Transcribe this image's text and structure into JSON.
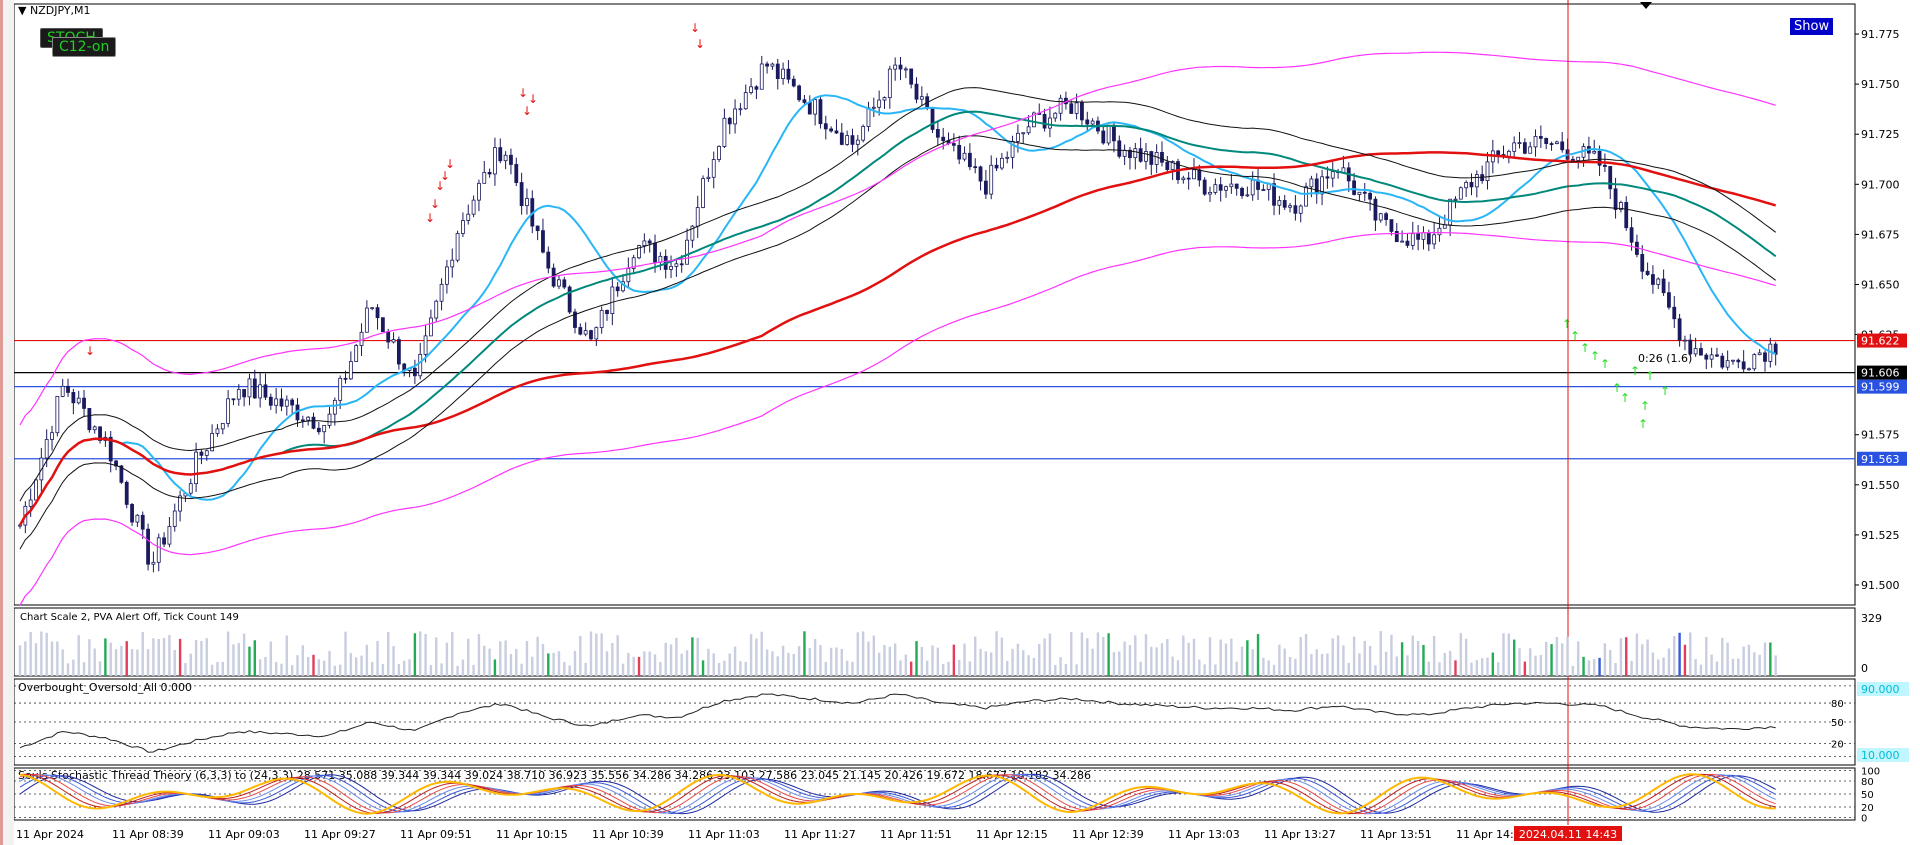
{
  "header": {
    "symbol_title": "NZDJPY,M1",
    "tag_stoch": "STOCH",
    "tag_c12": "C12-on",
    "show_button": "Show"
  },
  "price_axis": {
    "ticks": [
      "91.775",
      "91.750",
      "91.725",
      "91.700",
      "91.675",
      "91.650",
      "91.625",
      "91.575",
      "91.550",
      "91.525",
      "91.500"
    ],
    "labels": [
      {
        "text": "91.622",
        "value": 91.622,
        "bg": "#e01010",
        "fg": "#ffffff"
      },
      {
        "text": "91.606",
        "value": 91.606,
        "bg": "#000000",
        "fg": "#ffffff"
      },
      {
        "text": "91.599",
        "value": 91.599,
        "bg": "#2a52e0",
        "fg": "#ffffff"
      },
      {
        "text": "91.563",
        "value": 91.563,
        "bg": "#2a52e0",
        "fg": "#ffffff"
      }
    ],
    "timer_label": "0:26 (1.6)"
  },
  "volume_panel": {
    "title": "Chart Scale  2,   PVA Alert Off,   Tick Count  149",
    "max_label": "329",
    "min_label": "0"
  },
  "oscillator_panel": {
    "title": "Overbought_Oversold_All 0.000",
    "upper_label": "90.000",
    "lower_label": "10.000",
    "level_labels": [
      "80",
      "50",
      "20"
    ]
  },
  "stoch_panel": {
    "title": "Souls Stochastic Thread Theory (6,3,3) to (24,3,3) 28.571 35.088 39.344 39.344 39.024 38.710 36.923 35.556 34.286 34.286 33.103 27.586 23.045 21.145 20.426 19.672 18.677 18.182 34.286",
    "level_labels": [
      "100",
      "80",
      "50",
      "20",
      "0"
    ]
  },
  "time_axis": {
    "labels": [
      "11 Apr 2024",
      "11 Apr 08:39",
      "11 Apr 09:03",
      "11 Apr 09:27",
      "11 Apr 09:51",
      "11 Apr 10:15",
      "11 Apr 10:39",
      "11 Apr 11:03",
      "11 Apr 11:27",
      "11 Apr 11:51",
      "11 Apr 12:15",
      "11 Apr 12:39",
      "11 Apr 13:03",
      "11 Apr 13:27",
      "11 Apr 13:51",
      "11 Apr 14:"
    ],
    "cursor_label": "2024.04.11 14:43"
  },
  "colors": {
    "candle": "#1a1a5e",
    "ma_fast": "#29b6f6",
    "ma_mid": "#00897b",
    "ma_slow": "#e31010",
    "bands_inner": "#111111",
    "bands_outer": "#ff33ff",
    "sell_arrow": "#e31010",
    "buy_arrow": "#22dd22",
    "cursor_line": "#e31010"
  },
  "chart_data": {
    "type": "candlestick",
    "symbol": "NZDJPY",
    "timeframe": "M1",
    "ylim": [
      91.49,
      91.79
    ],
    "x": [
      "11 Apr 2024",
      "11 Apr 08:39",
      "11 Apr 09:03",
      "11 Apr 09:27",
      "11 Apr 09:51",
      "11 Apr 10:15",
      "11 Apr 10:39",
      "11 Apr 11:03",
      "11 Apr 11:27",
      "11 Apr 11:51",
      "11 Apr 12:15",
      "11 Apr 12:39",
      "11 Apr 13:03",
      "11 Apr 13:27",
      "11 Apr 13:51",
      "11 Apr 14:43"
    ],
    "close_path": [
      91.53,
      91.6,
      91.57,
      91.51,
      91.56,
      91.6,
      91.59,
      91.58,
      91.64,
      91.6,
      91.68,
      91.72,
      91.66,
      91.62,
      91.67,
      91.66,
      91.73,
      91.76,
      91.74,
      91.72,
      91.76,
      91.72,
      91.7,
      91.73,
      91.74,
      91.72,
      91.71,
      91.7,
      91.7,
      91.69,
      91.71,
      91.68,
      91.67,
      91.7,
      91.72,
      91.72,
      91.71,
      91.66,
      91.62,
      91.61,
      91.62
    ],
    "last_price": 91.606,
    "horizontal_levels": [
      91.622,
      91.606,
      91.599,
      91.563
    ]
  }
}
